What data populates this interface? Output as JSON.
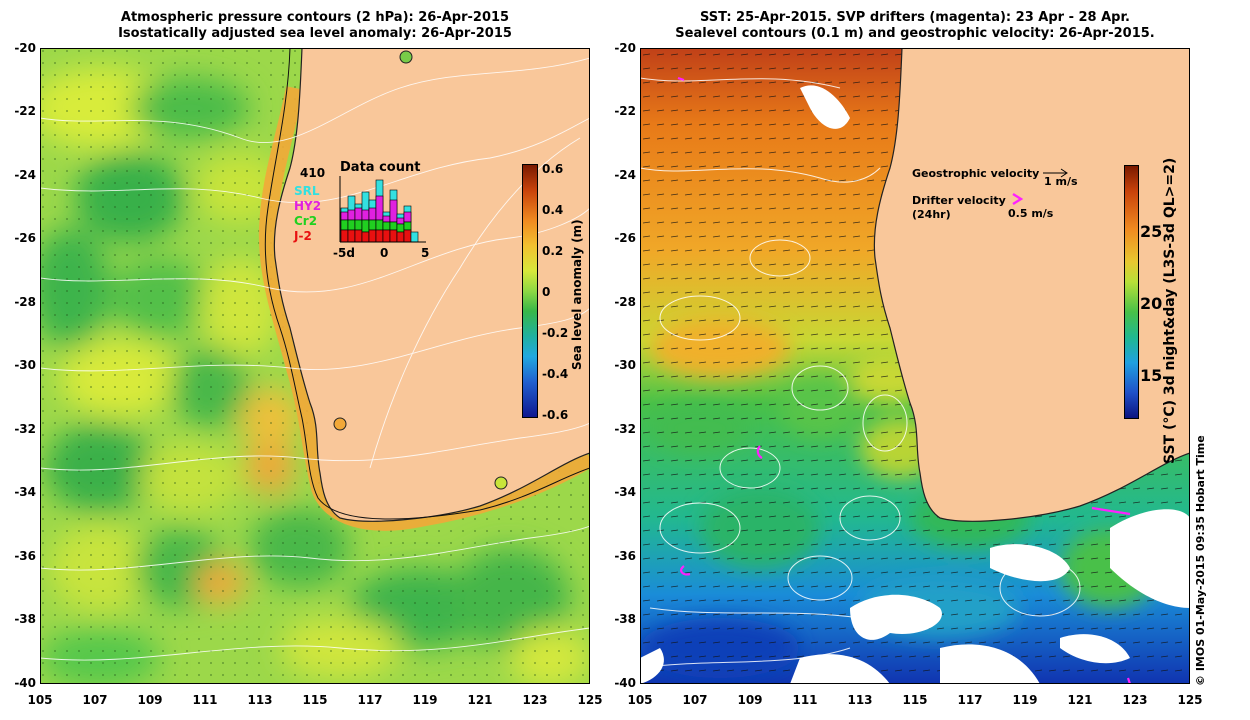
{
  "left_panel": {
    "title_line1": "Atmospheric pressure contours (2 hPa): 26-Apr-2015",
    "title_line2": "Isostatically adjusted sea level anomaly: 26-Apr-2015",
    "colorbar_label": "Sea level anomaly (m)",
    "colorbar_ticks": [
      "0.6",
      "0.4",
      "0.2",
      "0",
      "-0.2",
      "-0.4",
      "-0.6"
    ],
    "data_count": {
      "title": "Data count",
      "total": "410",
      "satellites": [
        {
          "name": "SRL",
          "color": "#33e0e0"
        },
        {
          "name": "HY2",
          "color": "#e020e0"
        },
        {
          "name": "Cr2",
          "color": "#20d020"
        },
        {
          "name": "J-2",
          "color": "#e81010"
        }
      ],
      "x_ticks": [
        "-5d",
        "0",
        "5"
      ]
    }
  },
  "right_panel": {
    "title_line1": "SST: 25-Apr-2015. SVP drifters (magenta): 23 Apr - 28 Apr.",
    "title_line2": "Sealevel contours (0.1 m) and geostrophic velocity: 26-Apr-2015.",
    "legend_geo": "Geostrophic velocity",
    "legend_geo_value": "1 m/s",
    "legend_drifter_line1": "Drifter velocity",
    "legend_drifter_line2": "(24hr)",
    "legend_drifter_value": "0.5 m/s",
    "colorbar_label": "SST (°C) 3d night&day (L3S-3d QL>=2)",
    "colorbar_ticks": [
      "25",
      "20",
      "15"
    ]
  },
  "axes": {
    "y_ticks": [
      "-20",
      "-22",
      "-24",
      "-26",
      "-28",
      "-30",
      "-32",
      "-34",
      "-36",
      "-38",
      "-40"
    ],
    "x_ticks": [
      "105",
      "107",
      "109",
      "111",
      "113",
      "115",
      "117",
      "119",
      "121",
      "123",
      "125"
    ]
  },
  "credit": "© IMOS 01-May-2015 09:35 Hobart Time",
  "colors": {
    "land": "#f9c79a",
    "sla_green": "#5cc84a",
    "sla_yellow": "#d8e83a",
    "sla_orange": "#f2a838",
    "sst_orange": "#e8901e",
    "sst_green": "#4cc448",
    "sst_blue": "#1e8ce0",
    "contour": "#ffffff",
    "drifter": "#ff20ff"
  }
}
